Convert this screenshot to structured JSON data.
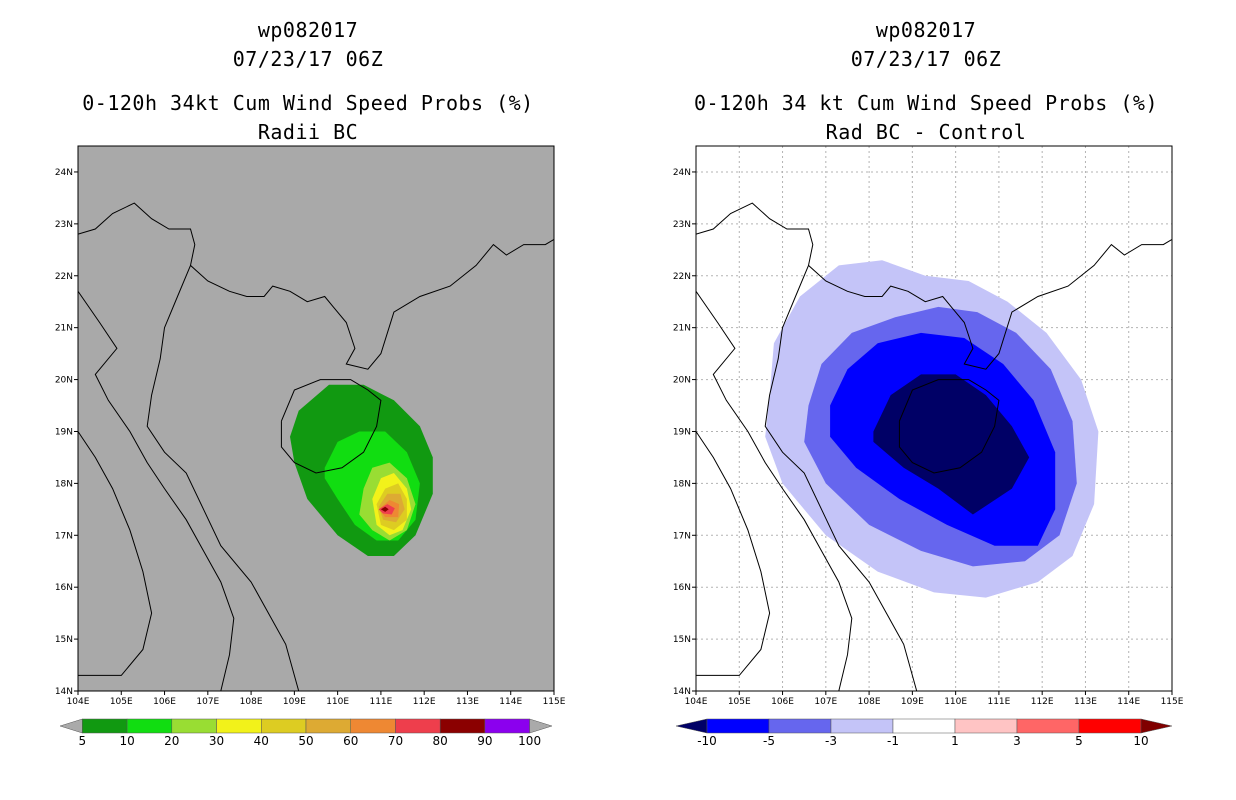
{
  "chart_data": [
    {
      "type": "contour-map",
      "title_lines": [
        "wp082017",
        "07/23/17 06Z",
        "0-120h 34kt Cum Wind Speed Probs (%)",
        "Radii BC"
      ],
      "xlabel": "",
      "ylabel": "",
      "xlim": [
        104,
        115
      ],
      "ylim": [
        14,
        24.5
      ],
      "x_ticks": [
        104,
        105,
        106,
        107,
        108,
        109,
        110,
        111,
        112,
        113,
        114,
        115
      ],
      "x_tick_labels": [
        "104E",
        "105E",
        "106E",
        "107E",
        "108E",
        "109E",
        "110E",
        "111E",
        "112E",
        "113E",
        "114E",
        "115E"
      ],
      "y_ticks": [
        14,
        15,
        16,
        17,
        18,
        19,
        20,
        21,
        22,
        23,
        24
      ],
      "y_tick_labels": [
        "14N",
        "15N",
        "16N",
        "17N",
        "18N",
        "19N",
        "20N",
        "21N",
        "22N",
        "23N",
        "24N"
      ],
      "grid": false,
      "background": "#a9a9a9",
      "colorbar": {
        "levels": [
          "5",
          "10",
          "20",
          "30",
          "40",
          "50",
          "60",
          "70",
          "80",
          "90",
          "100"
        ],
        "colors": [
          "#119911",
          "#11dd11",
          "#99dd33",
          "#f2f21a",
          "#ddcc22",
          "#ddaa33",
          "#ee8833",
          "#ee3e4c",
          "#8b0000",
          "#8b00ee"
        ],
        "under_color": "#aaaaaa",
        "over_color": "#aaaaaa"
      },
      "contours": [
        {
          "level": "5",
          "color": "#119911",
          "polygon": [
            [
              108.9,
              18.9
            ],
            [
              109.1,
              19.4
            ],
            [
              109.8,
              19.9
            ],
            [
              110.6,
              19.9
            ],
            [
              111.3,
              19.6
            ],
            [
              111.9,
              19.1
            ],
            [
              112.2,
              18.5
            ],
            [
              112.2,
              17.8
            ],
            [
              111.8,
              17.0
            ],
            [
              111.3,
              16.6
            ],
            [
              110.7,
              16.6
            ],
            [
              110.0,
              17.0
            ],
            [
              109.3,
              17.7
            ],
            [
              109.0,
              18.4
            ]
          ]
        },
        {
          "level": "10",
          "color": "#11dd11",
          "polygon": [
            [
              109.7,
              18.3
            ],
            [
              110.0,
              18.8
            ],
            [
              110.5,
              19.0
            ],
            [
              111.1,
              19.0
            ],
            [
              111.6,
              18.6
            ],
            [
              111.9,
              18.0
            ],
            [
              111.8,
              17.3
            ],
            [
              111.4,
              16.9
            ],
            [
              110.9,
              16.9
            ],
            [
              110.4,
              17.2
            ],
            [
              110.0,
              17.7
            ],
            [
              109.7,
              18.1
            ]
          ]
        },
        {
          "level": "20",
          "color": "#99dd33",
          "polygon": [
            [
              110.6,
              17.9
            ],
            [
              110.8,
              18.3
            ],
            [
              111.2,
              18.4
            ],
            [
              111.6,
              18.1
            ],
            [
              111.8,
              17.6
            ],
            [
              111.6,
              17.1
            ],
            [
              111.2,
              16.9
            ],
            [
              110.8,
              17.1
            ],
            [
              110.5,
              17.4
            ]
          ]
        },
        {
          "level": "30",
          "color": "#f2f21a",
          "polygon": [
            [
              110.8,
              17.7
            ],
            [
              111.0,
              18.1
            ],
            [
              111.3,
              18.2
            ],
            [
              111.6,
              17.9
            ],
            [
              111.7,
              17.5
            ],
            [
              111.5,
              17.1
            ],
            [
              111.2,
              17.0
            ],
            [
              110.9,
              17.2
            ]
          ]
        },
        {
          "level": "40",
          "color": "#ddcc22",
          "polygon": [
            [
              110.9,
              17.6
            ],
            [
              111.1,
              17.9
            ],
            [
              111.4,
              18.0
            ],
            [
              111.6,
              17.7
            ],
            [
              111.6,
              17.3
            ],
            [
              111.3,
              17.1
            ],
            [
              111.0,
              17.2
            ]
          ]
        },
        {
          "level": "50",
          "color": "#ddaa33",
          "polygon": [
            [
              110.95,
              17.55
            ],
            [
              111.15,
              17.8
            ],
            [
              111.45,
              17.8
            ],
            [
              111.55,
              17.5
            ],
            [
              111.35,
              17.25
            ],
            [
              111.05,
              17.3
            ]
          ]
        },
        {
          "level": "60",
          "color": "#ee8833",
          "polygon": [
            [
              110.95,
              17.5
            ],
            [
              111.2,
              17.68
            ],
            [
              111.42,
              17.6
            ],
            [
              111.4,
              17.35
            ],
            [
              111.1,
              17.35
            ]
          ]
        },
        {
          "level": "70",
          "color": "#ee3e4c",
          "polygon": [
            [
              110.95,
              17.5
            ],
            [
              111.15,
              17.6
            ],
            [
              111.32,
              17.52
            ],
            [
              111.25,
              17.4
            ],
            [
              111.05,
              17.42
            ]
          ]
        },
        {
          "level": "80",
          "color": "#8b0000",
          "polygon": [
            [
              111.0,
              17.5
            ],
            [
              111.1,
              17.55
            ],
            [
              111.18,
              17.5
            ],
            [
              111.1,
              17.45
            ]
          ]
        }
      ]
    },
    {
      "type": "contour-map",
      "title_lines": [
        "wp082017",
        "07/23/17 06Z",
        "0-120h 34 kt Cum Wind Speed Probs (%)",
        "Rad BC - Control"
      ],
      "xlabel": "",
      "ylabel": "",
      "xlim": [
        104,
        115
      ],
      "ylim": [
        14,
        24.5
      ],
      "x_ticks": [
        104,
        105,
        106,
        107,
        108,
        109,
        110,
        111,
        112,
        113,
        114,
        115
      ],
      "x_tick_labels": [
        "104E",
        "105E",
        "106E",
        "107E",
        "108E",
        "109E",
        "110E",
        "111E",
        "112E",
        "113E",
        "114E",
        "115E"
      ],
      "y_ticks": [
        14,
        15,
        16,
        17,
        18,
        19,
        20,
        21,
        22,
        23,
        24
      ],
      "y_tick_labels": [
        "14N",
        "15N",
        "16N",
        "17N",
        "18N",
        "19N",
        "20N",
        "21N",
        "22N",
        "23N",
        "24N"
      ],
      "grid": true,
      "background": "#ffffff",
      "colorbar": {
        "levels": [
          "-10",
          "-5",
          "-3",
          "-1",
          "1",
          "3",
          "5",
          "10"
        ],
        "colors": [
          "#0000ff",
          "#6666ee",
          "#c4c4f8",
          "#ffffff",
          "#ffc4c4",
          "#ff6666",
          "#ff0000"
        ],
        "under_color": "#000066",
        "over_color": "#800000"
      },
      "contours": [
        {
          "level": "-1",
          "color": "#c4c4f8",
          "polygon": [
            [
              105.7,
              19.7
            ],
            [
              105.8,
              20.7
            ],
            [
              106.4,
              21.6
            ],
            [
              107.3,
              22.2
            ],
            [
              108.3,
              22.3
            ],
            [
              109.3,
              22.0
            ],
            [
              110.3,
              21.9
            ],
            [
              111.2,
              21.5
            ],
            [
              112.1,
              20.9
            ],
            [
              112.9,
              20.0
            ],
            [
              113.3,
              19.0
            ],
            [
              113.2,
              17.6
            ],
            [
              112.7,
              16.6
            ],
            [
              111.9,
              16.1
            ],
            [
              110.7,
              15.8
            ],
            [
              109.5,
              15.9
            ],
            [
              108.2,
              16.3
            ],
            [
              107.0,
              17.0
            ],
            [
              106.0,
              18.0
            ],
            [
              105.6,
              18.9
            ]
          ]
        },
        {
          "level": "-3",
          "color": "#6666ee",
          "polygon": [
            [
              106.6,
              19.5
            ],
            [
              106.9,
              20.3
            ],
            [
              107.6,
              20.9
            ],
            [
              108.6,
              21.2
            ],
            [
              109.6,
              21.4
            ],
            [
              110.5,
              21.3
            ],
            [
              111.4,
              20.9
            ],
            [
              112.2,
              20.2
            ],
            [
              112.7,
              19.2
            ],
            [
              112.8,
              18.0
            ],
            [
              112.4,
              17.0
            ],
            [
              111.6,
              16.5
            ],
            [
              110.4,
              16.4
            ],
            [
              109.2,
              16.7
            ],
            [
              108.0,
              17.2
            ],
            [
              107.0,
              18.0
            ],
            [
              106.5,
              18.8
            ]
          ]
        },
        {
          "level": "-5",
          "color": "#0000ff",
          "polygon": [
            [
              107.1,
              19.5
            ],
            [
              107.5,
              20.2
            ],
            [
              108.2,
              20.7
            ],
            [
              109.2,
              20.9
            ],
            [
              110.2,
              20.8
            ],
            [
              111.1,
              20.3
            ],
            [
              111.8,
              19.6
            ],
            [
              112.3,
              18.6
            ],
            [
              112.3,
              17.5
            ],
            [
              111.9,
              16.8
            ],
            [
              110.9,
              16.8
            ],
            [
              109.8,
              17.2
            ],
            [
              108.7,
              17.7
            ],
            [
              107.7,
              18.3
            ],
            [
              107.1,
              18.9
            ]
          ]
        },
        {
          "level": "-10",
          "color": "#000066",
          "polygon": [
            [
              108.1,
              19.0
            ],
            [
              108.5,
              19.7
            ],
            [
              109.2,
              20.1
            ],
            [
              110.0,
              20.1
            ],
            [
              110.7,
              19.7
            ],
            [
              111.3,
              19.1
            ],
            [
              111.7,
              18.5
            ],
            [
              111.3,
              17.9
            ],
            [
              110.4,
              17.4
            ],
            [
              109.6,
              17.9
            ],
            [
              108.8,
              18.3
            ],
            [
              108.1,
              18.8
            ]
          ]
        }
      ]
    }
  ]
}
